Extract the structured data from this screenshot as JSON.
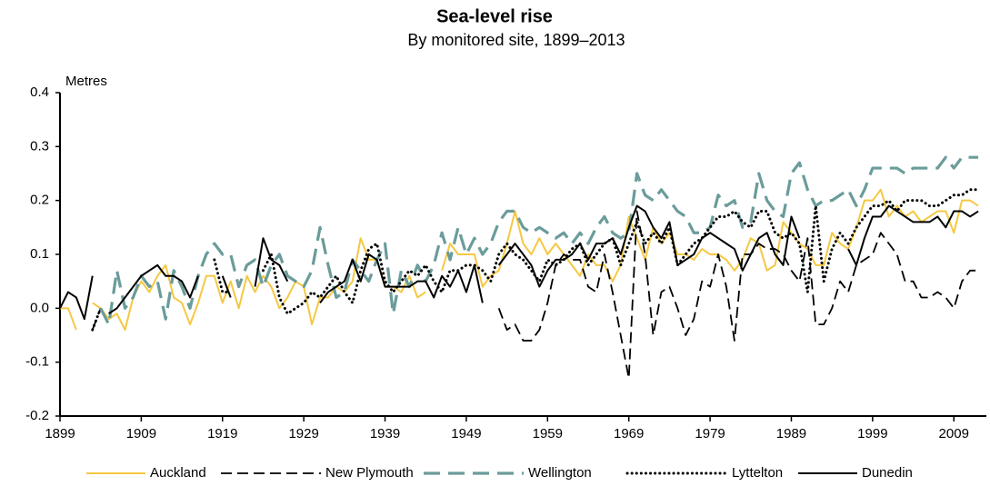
{
  "chart_data": {
    "type": "line",
    "title": "Sea-level rise",
    "subtitle": "By monitored site, 1899–2013",
    "y_label": "Metres",
    "x": [
      1899,
      1900,
      1901,
      1902,
      1903,
      1904,
      1905,
      1906,
      1907,
      1908,
      1909,
      1910,
      1911,
      1912,
      1913,
      1914,
      1915,
      1916,
      1917,
      1918,
      1919,
      1920,
      1921,
      1922,
      1923,
      1924,
      1925,
      1926,
      1927,
      1928,
      1929,
      1930,
      1931,
      1932,
      1933,
      1934,
      1935,
      1936,
      1937,
      1938,
      1939,
      1940,
      1941,
      1942,
      1943,
      1944,
      1945,
      1946,
      1947,
      1948,
      1949,
      1950,
      1951,
      1952,
      1953,
      1954,
      1955,
      1956,
      1957,
      1958,
      1959,
      1960,
      1961,
      1962,
      1963,
      1964,
      1965,
      1966,
      1967,
      1968,
      1969,
      1970,
      1971,
      1972,
      1973,
      1974,
      1975,
      1976,
      1977,
      1978,
      1979,
      1980,
      1981,
      1982,
      1983,
      1984,
      1985,
      1986,
      1987,
      1988,
      1989,
      1990,
      1991,
      1992,
      1993,
      1994,
      1995,
      1996,
      1997,
      1998,
      1999,
      2000,
      2001,
      2002,
      2003,
      2004,
      2005,
      2006,
      2007,
      2008,
      2009,
      2010,
      2011,
      2012
    ],
    "xlim": [
      1899,
      2013
    ],
    "xticks": [
      1899,
      1909,
      1919,
      1929,
      1939,
      1949,
      1959,
      1969,
      1979,
      1989,
      1999,
      2009
    ],
    "ylim": [
      -0.2,
      0.4
    ],
    "yticks": [
      -0.2,
      -0.1,
      {
        "value": 0,
        "label": "0.0"
      },
      0.1,
      0.2,
      0.3,
      0.4
    ],
    "grid": false,
    "legend": "bottom",
    "series": [
      {
        "name": "Auckland",
        "color": "#f5c842",
        "dash": "solid",
        "values": [
          0.0,
          0.0,
          -0.04,
          null,
          0.01,
          0.0,
          -0.02,
          -0.01,
          -0.04,
          0.02,
          0.05,
          0.03,
          0.06,
          0.08,
          0.02,
          0.01,
          -0.03,
          0.01,
          0.06,
          0.06,
          0.01,
          0.05,
          0.0,
          0.06,
          0.03,
          0.06,
          0.04,
          0.0,
          0.02,
          0.05,
          0.04,
          -0.03,
          0.02,
          0.02,
          0.04,
          0.03,
          0.05,
          0.13,
          0.09,
          0.09,
          0.04,
          0.04,
          0.03,
          0.06,
          0.02,
          0.03,
          null,
          0.07,
          0.12,
          0.1,
          0.1,
          0.1,
          0.04,
          0.06,
          0.07,
          0.12,
          0.18,
          0.12,
          0.1,
          0.13,
          0.1,
          0.12,
          0.1,
          0.08,
          0.06,
          0.1,
          0.08,
          0.08,
          0.05,
          0.08,
          0.17,
          0.13,
          0.09,
          0.15,
          0.12,
          0.14,
          0.1,
          0.1,
          0.09,
          0.11,
          0.1,
          0.1,
          0.09,
          0.07,
          0.09,
          0.13,
          0.12,
          0.07,
          0.08,
          0.16,
          0.14,
          0.12,
          0.11,
          0.08,
          0.08,
          0.14,
          0.12,
          0.11,
          0.15,
          0.2,
          0.2,
          0.22,
          0.17,
          0.19,
          0.17,
          0.18,
          0.16,
          0.17,
          0.18,
          0.18,
          0.14,
          0.2,
          0.2,
          0.19
        ]
      },
      {
        "name": "New Plymouth",
        "color": "#000000",
        "dash": "dashed",
        "values": [
          null,
          null,
          null,
          null,
          -0.04,
          0.0,
          null,
          null,
          null,
          null,
          null,
          null,
          null,
          null,
          null,
          null,
          null,
          null,
          null,
          null,
          null,
          null,
          null,
          null,
          null,
          null,
          null,
          null,
          null,
          null,
          null,
          null,
          null,
          null,
          null,
          null,
          null,
          null,
          null,
          null,
          null,
          null,
          null,
          null,
          null,
          null,
          null,
          null,
          null,
          null,
          null,
          null,
          null,
          null,
          0.0,
          -0.04,
          -0.03,
          -0.06,
          -0.06,
          -0.04,
          0.01,
          0.08,
          0.1,
          0.09,
          0.09,
          0.04,
          0.03,
          0.1,
          0.03,
          -0.05,
          -0.13,
          0.18,
          0.1,
          -0.05,
          0.03,
          0.04,
          0.0,
          -0.05,
          -0.02,
          0.05,
          0.04,
          0.1,
          0.04,
          -0.06,
          0.1,
          0.1,
          0.12,
          0.11,
          0.11,
          0.1,
          0.07,
          0.05,
          0.13,
          -0.03,
          -0.03,
          0.0,
          0.05,
          0.03,
          0.08,
          0.09,
          0.1,
          0.14,
          0.12,
          0.1,
          0.05,
          0.05,
          0.02,
          0.02,
          0.03,
          0.02,
          0.0,
          0.05,
          0.07,
          0.07
        ]
      },
      {
        "name": "Wellington",
        "color": "#6a9c9a",
        "dash": "longdash",
        "values": [
          null,
          null,
          null,
          null,
          null,
          0.0,
          -0.03,
          0.07,
          0.0,
          0.02,
          0.06,
          0.04,
          0.05,
          -0.02,
          0.07,
          0.04,
          0.0,
          0.06,
          0.1,
          0.12,
          0.1,
          0.1,
          0.04,
          0.08,
          0.09,
          0.04,
          0.08,
          0.1,
          0.06,
          0.05,
          0.04,
          0.07,
          0.15,
          0.08,
          0.02,
          0.03,
          0.09,
          0.07,
          0.05,
          0.09,
          0.12,
          -0.01,
          0.07,
          0.04,
          0.08,
          0.05,
          0.08,
          0.14,
          0.09,
          0.15,
          0.1,
          0.13,
          0.1,
          0.12,
          0.16,
          0.18,
          0.18,
          0.15,
          0.14,
          0.15,
          0.14,
          0.13,
          0.14,
          0.12,
          0.14,
          0.12,
          0.15,
          0.17,
          0.14,
          0.13,
          0.14,
          0.25,
          0.21,
          0.2,
          0.22,
          0.2,
          0.18,
          0.17,
          0.14,
          0.14,
          0.15,
          0.21,
          0.19,
          0.2,
          0.15,
          0.16,
          0.25,
          0.2,
          0.18,
          0.17,
          0.25,
          0.27,
          0.22,
          0.19,
          0.2,
          0.2,
          0.21,
          0.22,
          0.19,
          0.22,
          0.26,
          0.26,
          0.26,
          0.26,
          0.25,
          0.26,
          0.26,
          0.26,
          0.26,
          0.28,
          0.26,
          0.28,
          0.28,
          0.28
        ]
      },
      {
        "name": "Lyttelton",
        "color": "#000000",
        "dash": "dotted",
        "values": [
          null,
          null,
          null,
          null,
          -0.04,
          0.0,
          null,
          null,
          null,
          null,
          null,
          null,
          null,
          null,
          null,
          null,
          null,
          null,
          null,
          0.09,
          0.03,
          0.03,
          null,
          null,
          null,
          0.07,
          0.1,
          0.02,
          -0.01,
          0.0,
          0.01,
          0.03,
          0.02,
          0.04,
          0.06,
          0.03,
          0.01,
          0.07,
          0.11,
          0.12,
          0.05,
          0.03,
          0.05,
          0.07,
          0.06,
          0.08,
          0.05,
          0.03,
          0.07,
          0.07,
          0.08,
          0.08,
          0.07,
          0.05,
          0.1,
          0.12,
          0.1,
          0.09,
          0.07,
          0.05,
          0.09,
          0.08,
          0.09,
          0.11,
          0.12,
          0.08,
          0.1,
          0.12,
          0.13,
          0.08,
          0.12,
          0.16,
          0.12,
          0.14,
          0.12,
          0.15,
          0.08,
          0.1,
          0.12,
          0.13,
          0.15,
          0.17,
          0.17,
          0.18,
          0.16,
          0.15,
          0.18,
          0.18,
          0.14,
          0.13,
          0.14,
          0.12,
          0.03,
          0.19,
          0.05,
          0.11,
          0.14,
          0.12,
          0.15,
          0.17,
          0.19,
          0.19,
          0.2,
          0.18,
          0.2,
          0.2,
          0.2,
          0.19,
          0.19,
          0.2,
          0.21,
          0.21,
          0.22,
          0.22
        ]
      },
      {
        "name": "Dunedin",
        "color": "#000000",
        "dash": "solid",
        "values": [
          0.0,
          0.03,
          0.02,
          -0.02,
          0.06,
          null,
          -0.01,
          0.0,
          0.02,
          0.04,
          0.06,
          0.07,
          0.08,
          0.06,
          0.06,
          0.05,
          0.02,
          0.06,
          null,
          null,
          0.06,
          0.02,
          null,
          null,
          0.04,
          0.13,
          0.09,
          0.08,
          0.05,
          null,
          null,
          null,
          0.01,
          0.03,
          0.04,
          0.05,
          0.09,
          0.05,
          0.1,
          0.09,
          0.04,
          0.04,
          0.04,
          0.04,
          0.05,
          0.05,
          0.02,
          0.06,
          0.04,
          0.07,
          0.03,
          0.08,
          0.01,
          null,
          0.08,
          0.1,
          0.12,
          0.1,
          0.08,
          0.04,
          0.07,
          0.09,
          0.09,
          0.1,
          0.12,
          0.09,
          0.12,
          0.12,
          0.13,
          0.1,
          0.15,
          0.19,
          0.18,
          0.15,
          0.13,
          0.16,
          0.08,
          0.09,
          0.1,
          0.13,
          0.14,
          0.13,
          0.12,
          0.11,
          0.07,
          0.1,
          0.13,
          0.14,
          0.1,
          0.08,
          0.17,
          0.13,
          null,
          null,
          0.17,
          null,
          null,
          0.11,
          0.08,
          0.13,
          0.17,
          0.17,
          0.19,
          0.18,
          0.17,
          0.16,
          0.16,
          0.16,
          0.17,
          0.15,
          0.18,
          0.18,
          0.17,
          0.18
        ]
      }
    ]
  }
}
